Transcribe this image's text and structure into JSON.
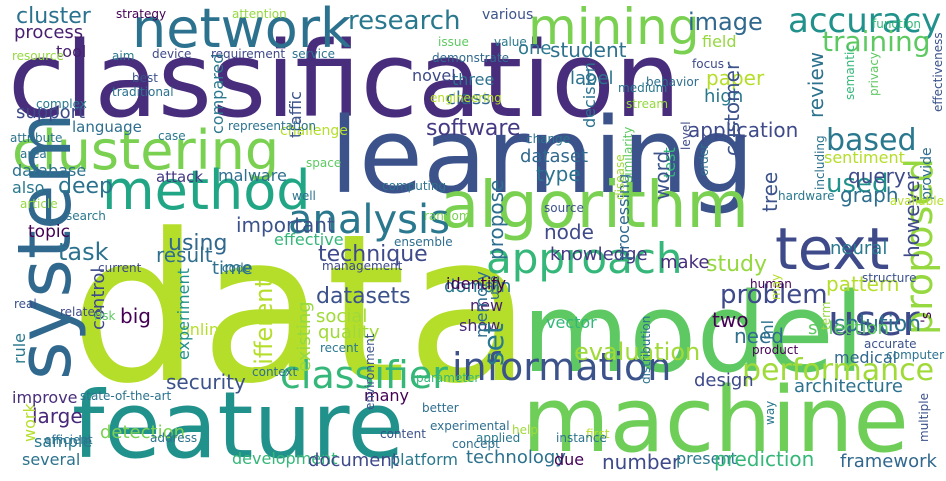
{
  "words": [
    {
      "text": "classification",
      "color": "#472d7b"
    },
    {
      "text": "data",
      "color": "#b5de2b"
    },
    {
      "text": "learning",
      "color": "#3b528b"
    },
    {
      "text": "model",
      "color": "#5ec962"
    },
    {
      "text": "feature",
      "color": "#21918c"
    },
    {
      "text": "machine",
      "color": "#6ece58"
    },
    {
      "text": "algorithm",
      "color": "#7ad151"
    },
    {
      "text": "network",
      "color": "#2c728e"
    },
    {
      "text": "clustering",
      "color": "#7ad151"
    },
    {
      "text": "method",
      "color": "#21a685"
    },
    {
      "text": "system",
      "color": "#31688e"
    },
    {
      "text": "text",
      "color": "#3e4a89"
    },
    {
      "text": "mining",
      "color": "#7ad151"
    },
    {
      "text": "accuracy",
      "color": "#21918c"
    },
    {
      "text": "approach",
      "color": "#35b779"
    },
    {
      "text": "analysis",
      "color": "#2a788e"
    },
    {
      "text": "user",
      "color": "#3e4a89"
    },
    {
      "text": "classifier",
      "color": "#35b779"
    },
    {
      "text": "information",
      "color": "#3b528b"
    },
    {
      "text": "proposed",
      "color": "#95d840"
    },
    {
      "text": "performance",
      "color": "#a0da39"
    },
    {
      "text": "training",
      "color": "#5ec962"
    },
    {
      "text": "cluster",
      "color": "#2c728e"
    },
    {
      "text": "research",
      "color": "#2a788e"
    },
    {
      "text": "image",
      "color": "#31688e"
    },
    {
      "text": "process",
      "color": "#481f70"
    },
    {
      "text": "software",
      "color": "#443983"
    },
    {
      "text": "support",
      "color": "#3e4a89"
    },
    {
      "text": "tool",
      "color": "#481f70"
    },
    {
      "text": "language",
      "color": "#2e6e8e"
    },
    {
      "text": "also",
      "color": "#2a788e"
    },
    {
      "text": "deep",
      "color": "#2c728e"
    },
    {
      "text": "database",
      "color": "#2c728e"
    },
    {
      "text": "attack",
      "color": "#443983"
    },
    {
      "text": "malware",
      "color": "#2e6e8e"
    },
    {
      "text": "topic",
      "color": "#440154"
    },
    {
      "text": "task",
      "color": "#2c728e"
    },
    {
      "text": "result",
      "color": "#2e6e8e"
    },
    {
      "text": "using",
      "color": "#31688e"
    },
    {
      "text": "important",
      "color": "#3b528b"
    },
    {
      "text": "technique",
      "color": "#3e4a89"
    },
    {
      "text": "time",
      "color": "#2c728e"
    },
    {
      "text": "effective",
      "color": "#35b779"
    },
    {
      "text": "based",
      "color": "#2a788e"
    },
    {
      "text": "sentiment",
      "color": "#b5de2b"
    },
    {
      "text": "used",
      "color": "#21918c"
    },
    {
      "text": "query",
      "color": "#3e4a89"
    },
    {
      "text": "graph",
      "color": "#2e6e8e"
    },
    {
      "text": "neural",
      "color": "#2a788e"
    },
    {
      "text": "however",
      "color": "#3e4a89"
    },
    {
      "text": "study",
      "color": "#95d840"
    },
    {
      "text": "problem",
      "color": "#3e4a89"
    },
    {
      "text": "pattern",
      "color": "#b5de2b"
    },
    {
      "text": "solution",
      "color": "#2c728e"
    },
    {
      "text": "knowledge",
      "color": "#443983"
    },
    {
      "text": "make",
      "color": "#472d7b"
    },
    {
      "text": "domain",
      "color": "#2a788e"
    },
    {
      "text": "vector",
      "color": "#35b779"
    },
    {
      "text": "new",
      "color": "#482173"
    },
    {
      "text": "show",
      "color": "#482878"
    },
    {
      "text": "set",
      "color": "#2a788e"
    },
    {
      "text": "two",
      "color": "#440154"
    },
    {
      "text": "evaluation",
      "color": "#a0da39"
    },
    {
      "text": "security",
      "color": "#3b528b"
    },
    {
      "text": "design",
      "color": "#3e4a89"
    },
    {
      "text": "architecture",
      "color": "#2c728e"
    },
    {
      "text": "datasets",
      "color": "#3b528b"
    },
    {
      "text": "social",
      "color": "#a0da39"
    },
    {
      "text": "quality",
      "color": "#a0da39"
    },
    {
      "text": "existing",
      "color": "#95d840"
    },
    {
      "text": "different",
      "color": "#b5de2b"
    },
    {
      "text": "online",
      "color": "#b5de2b"
    },
    {
      "text": "big",
      "color": "#440154"
    },
    {
      "text": "control",
      "color": "#3e4a89"
    },
    {
      "text": "experiment",
      "color": "#21918c"
    },
    {
      "text": "large",
      "color": "#482878"
    },
    {
      "text": "sample",
      "color": "#2a788e"
    },
    {
      "text": "detection",
      "color": "#7ad151"
    },
    {
      "text": "several",
      "color": "#2c728e"
    },
    {
      "text": "development",
      "color": "#35b779"
    },
    {
      "text": "document",
      "color": "#3e4a89"
    },
    {
      "text": "platform",
      "color": "#2a788e"
    },
    {
      "text": "technology",
      "color": "#2c728e"
    },
    {
      "text": "due",
      "color": "#440154"
    },
    {
      "text": "number",
      "color": "#3e4a89"
    },
    {
      "text": "present",
      "color": "#2a788e"
    },
    {
      "text": "prediction",
      "color": "#35b779"
    },
    {
      "text": "framework",
      "color": "#31688e"
    },
    {
      "text": "work",
      "color": "#b5de2b"
    },
    {
      "text": "improve",
      "color": "#472d7b"
    },
    {
      "text": "rule",
      "color": "#2a788e"
    },
    {
      "text": "student",
      "color": "#2c728e"
    },
    {
      "text": "one",
      "color": "#2a788e"
    },
    {
      "text": "paper",
      "color": "#b5de2b"
    },
    {
      "text": "review",
      "color": "#2c728e"
    },
    {
      "text": "high",
      "color": "#2a788e"
    },
    {
      "text": "application",
      "color": "#3e4a89"
    },
    {
      "text": "dataset",
      "color": "#31688e"
    },
    {
      "text": "customer",
      "color": "#3b528b"
    },
    {
      "text": "test",
      "color": "#35b779"
    },
    {
      "text": "word",
      "color": "#3b528b"
    },
    {
      "text": "type",
      "color": "#2c728e"
    },
    {
      "text": "tree",
      "color": "#3b528b"
    },
    {
      "text": "processing",
      "color": "#31688e"
    },
    {
      "text": "node",
      "color": "#3e4a89"
    },
    {
      "text": "many",
      "color": "#440154"
    },
    {
      "text": "memory",
      "color": "#2e6e8e"
    },
    {
      "text": "propose",
      "color": "#2e6e8e"
    },
    {
      "text": "class",
      "color": "#31688e"
    },
    {
      "text": "three",
      "color": "#2c728e"
    },
    {
      "text": "novel",
      "color": "#3e4a89"
    },
    {
      "text": "various",
      "color": "#3b528b"
    },
    {
      "text": "label",
      "color": "#2c728e"
    },
    {
      "text": "field",
      "color": "#95d840"
    },
    {
      "text": "provide",
      "color": "#2e6e8e"
    },
    {
      "text": "decision",
      "color": "#2c728e"
    },
    {
      "text": "selection",
      "color": "#5ec962"
    },
    {
      "text": "ml",
      "color": "#2c728e"
    },
    {
      "text": "need",
      "color": "#2e6e8e"
    },
    {
      "text": "medical",
      "color": "#31688e"
    },
    {
      "text": "use",
      "color": "#2e6e8e"
    },
    {
      "text": "identify",
      "color": "#440154"
    },
    {
      "text": "'s",
      "color": "#440154"
    },
    {
      "text": "compared",
      "color": "#2a788e"
    },
    {
      "text": "traffic",
      "color": "#3b528b"
    },
    {
      "text": "challenge",
      "color": "#b5de2b"
    },
    {
      "text": "strategy",
      "color": "#440154"
    },
    {
      "text": "attention",
      "color": "#95d840"
    },
    {
      "text": "resource",
      "color": "#95d840"
    },
    {
      "text": "aim",
      "color": "#2a788e"
    },
    {
      "text": "device",
      "color": "#3e4a89"
    },
    {
      "text": "requirement",
      "color": "#3e4a89"
    },
    {
      "text": "service",
      "color": "#2c728e"
    },
    {
      "text": "demonstrate",
      "color": "#31688e"
    },
    {
      "text": "issue",
      "color": "#5ec962"
    },
    {
      "text": "value",
      "color": "#2a788e"
    },
    {
      "text": "behavior",
      "color": "#2e6e8e"
    },
    {
      "text": "focus",
      "color": "#3e4a89"
    },
    {
      "text": "semantic",
      "color": "#35b779"
    },
    {
      "text": "function",
      "color": "#35b779"
    },
    {
      "text": "best",
      "color": "#3b528b"
    },
    {
      "text": "traditional",
      "color": "#2c728e"
    },
    {
      "text": "complex",
      "color": "#2a788e"
    },
    {
      "text": "engineering",
      "color": "#b5de2b"
    },
    {
      "text": "medium",
      "color": "#2a788e"
    },
    {
      "text": "stream",
      "color": "#95d840"
    },
    {
      "text": "privacy",
      "color": "#5ec962"
    },
    {
      "text": "effectiveness",
      "color": "#3b528b"
    },
    {
      "text": "representation",
      "color": "#2c728e"
    },
    {
      "text": "case",
      "color": "#2a788e"
    },
    {
      "text": "attribute",
      "color": "#2c728e"
    },
    {
      "text": "change",
      "color": "#2c728e"
    },
    {
      "text": "area",
      "color": "#2c728e"
    },
    {
      "text": "space",
      "color": "#5ec962"
    },
    {
      "text": "level",
      "color": "#3e4a89"
    },
    {
      "text": "computing",
      "color": "#2c728e"
    },
    {
      "text": "similarity",
      "color": "#5ec962"
    },
    {
      "text": "order",
      "color": "#2e6e8e"
    },
    {
      "text": "disease",
      "color": "#a0da39"
    },
    {
      "text": "hardware",
      "color": "#2a788e"
    },
    {
      "text": "available",
      "color": "#b5de2b"
    },
    {
      "text": "including",
      "color": "#2c728e"
    },
    {
      "text": "article",
      "color": "#95d840"
    },
    {
      "text": "search",
      "color": "#2a788e"
    },
    {
      "text": "well",
      "color": "#2c728e"
    },
    {
      "text": "source",
      "color": "#3b528b"
    },
    {
      "text": "random",
      "color": "#7ad151"
    },
    {
      "text": "ensemble",
      "color": "#2e6e8e"
    },
    {
      "text": "management",
      "color": "#3e4a89"
    },
    {
      "text": "current",
      "color": "#3e4a89"
    },
    {
      "text": "code",
      "color": "#2c728e"
    },
    {
      "text": "structure",
      "color": "#3b528b"
    },
    {
      "text": "human",
      "color": "#440154"
    },
    {
      "text": "real",
      "color": "#3b528b"
    },
    {
      "text": "related",
      "color": "#3e4a89"
    },
    {
      "text": "risk",
      "color": "#5ec962"
    },
    {
      "text": "recent",
      "color": "#2a788e"
    },
    {
      "text": "may",
      "color": "#b5de2b"
    },
    {
      "text": "product",
      "color": "#440154"
    },
    {
      "text": "term",
      "color": "#95d840"
    },
    {
      "text": "accurate",
      "color": "#3b528b"
    },
    {
      "text": "computer",
      "color": "#2c728e"
    },
    {
      "text": "context",
      "color": "#2e6e8e"
    },
    {
      "text": "state-of-the-art",
      "color": "#2c728e"
    },
    {
      "text": "parameter",
      "color": "#35b779"
    },
    {
      "text": "distribution",
      "color": "#2c728e"
    },
    {
      "text": "environment",
      "color": "#3b528b"
    },
    {
      "text": "better",
      "color": "#2e6e8e"
    },
    {
      "text": "experimental",
      "color": "#2e6e8e"
    },
    {
      "text": "applied",
      "color": "#2a788e"
    },
    {
      "text": "first",
      "color": "#b5de2b"
    },
    {
      "text": "instance",
      "color": "#2c728e"
    },
    {
      "text": "way",
      "color": "#2a788e"
    },
    {
      "text": "efficient",
      "color": "#2c728e"
    },
    {
      "text": "address",
      "color": "#2c728e"
    },
    {
      "text": "content",
      "color": "#3b528b"
    },
    {
      "text": "concept",
      "color": "#2e6e8e"
    },
    {
      "text": "help",
      "color": "#a0da39"
    },
    {
      "text": "multiple",
      "color": "#3b528b"
    }
  ]
}
